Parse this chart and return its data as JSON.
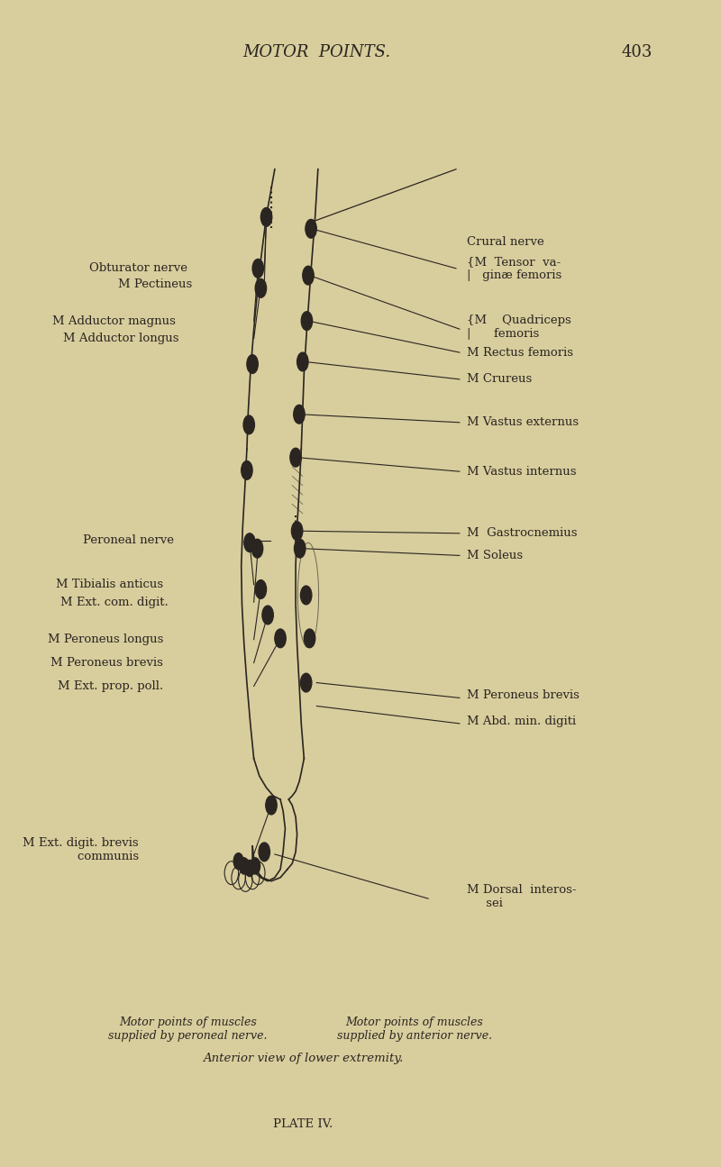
{
  "background_color": "#d8cd9d",
  "text_color": "#2a2520",
  "title": "MOTOR  POINTS.",
  "page_number": "403",
  "plate": "PLATE IV.",
  "caption_left": "Motor points of muscles\nsupplied by peroneal nerve.",
  "caption_right": "Motor points of muscles\nsupplied by anterior nerve.",
  "caption_center": "Anterior view of lower extremity."
}
